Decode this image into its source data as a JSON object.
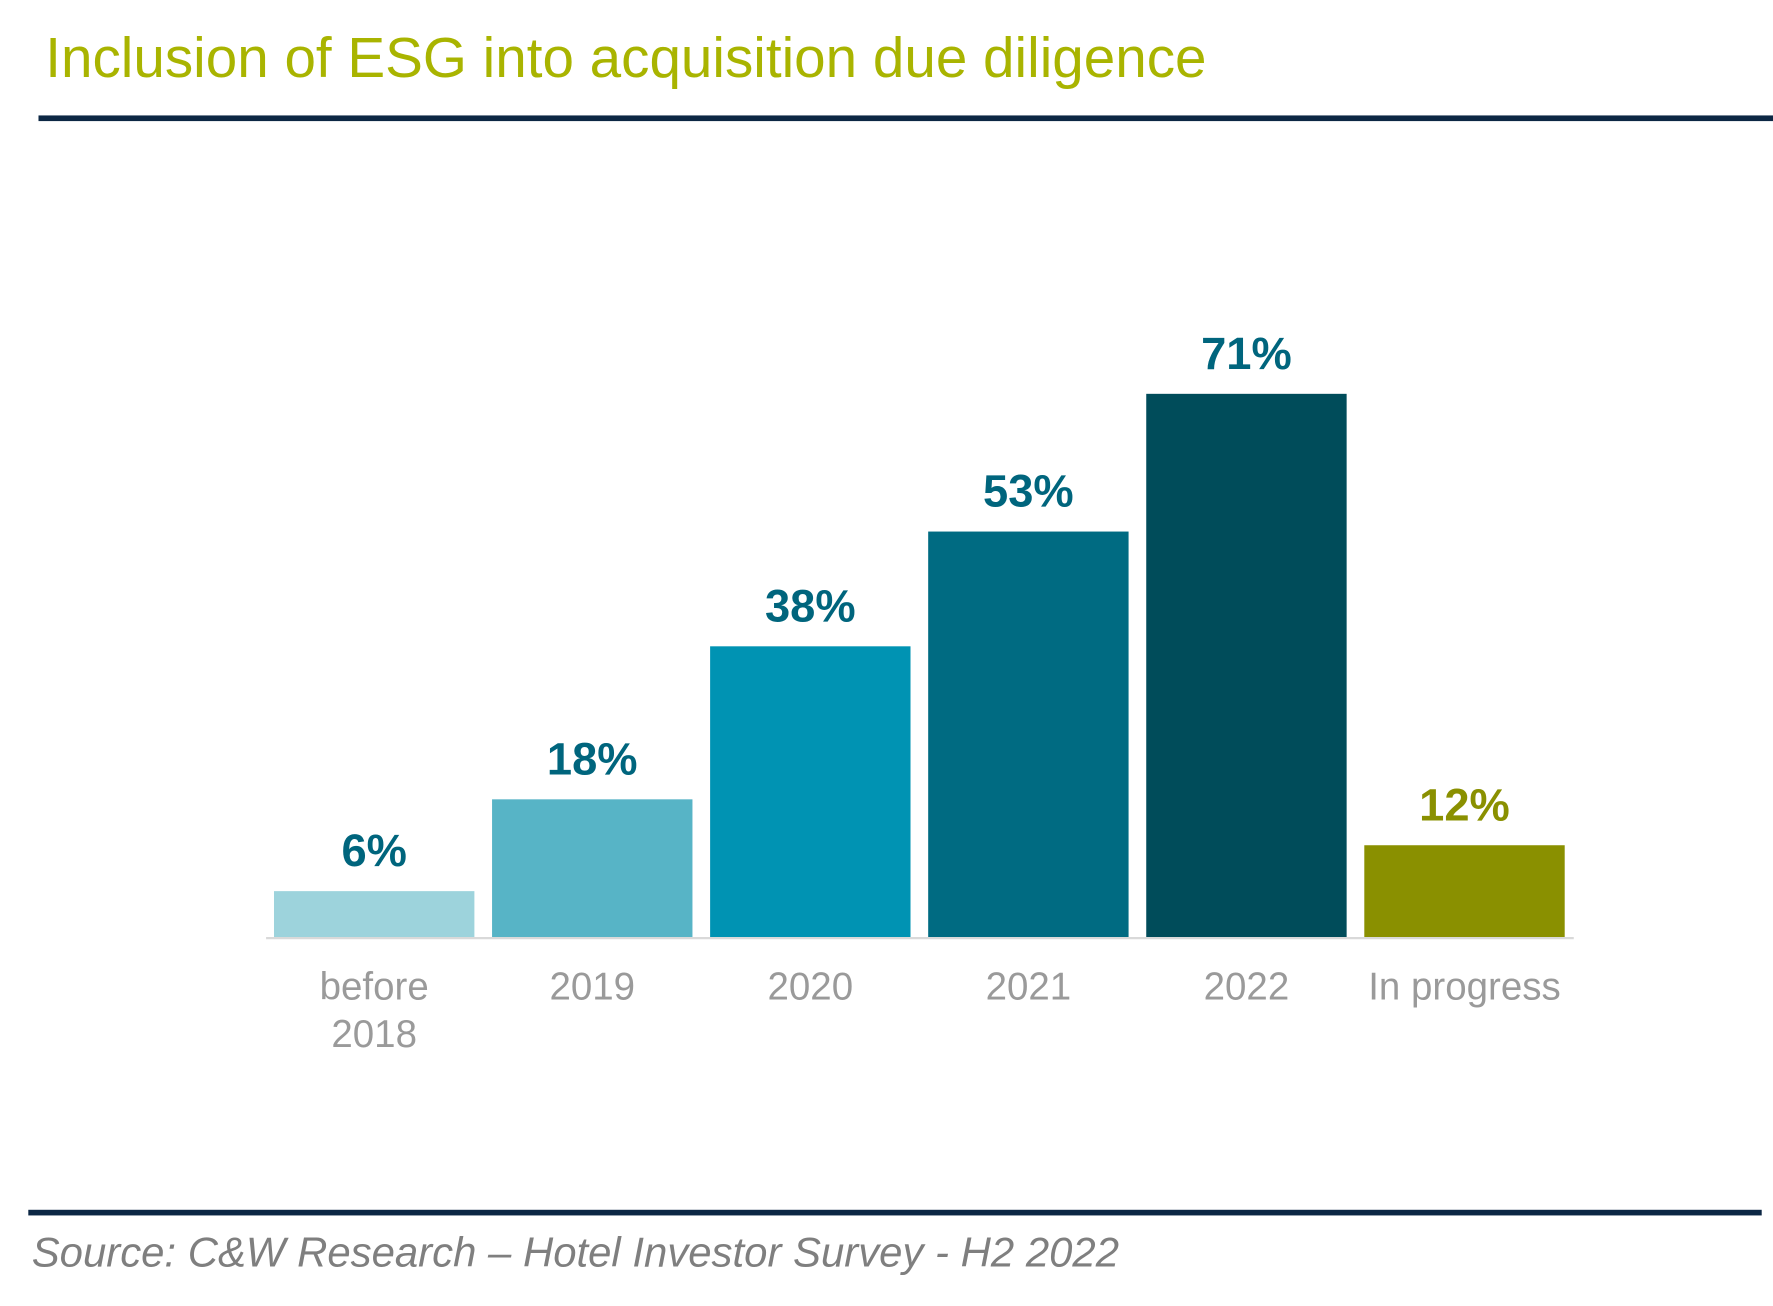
{
  "title": "Inclusion of ESG into acquisition due diligence",
  "source": "Source: C&W Research – Hotel Investor Survey - H2 2022",
  "colors": {
    "title": "#a9b400",
    "rule": "#0c2744",
    "label": "#00657d",
    "highlight_label": "#8a9000"
  },
  "chart_data": {
    "type": "bar",
    "title": "Inclusion of ESG into acquisition due diligence",
    "categories": [
      [
        "before",
        "2018"
      ],
      [
        "2019"
      ],
      [
        "2020"
      ],
      [
        "2021"
      ],
      [
        "2022"
      ],
      [
        "In progress"
      ]
    ],
    "values": [
      6,
      18,
      38,
      53,
      71,
      12
    ],
    "data_labels": [
      "6%",
      "18%",
      "38%",
      "53%",
      "71%",
      "12%"
    ],
    "bar_colors": [
      "#9dd3dc",
      "#57b4c6",
      "#0093b3",
      "#006b82",
      "#004c5a",
      "#8a9000"
    ],
    "label_colors": [
      "#00657d",
      "#00657d",
      "#00657d",
      "#00657d",
      "#00657d",
      "#8a9000"
    ],
    "unit": "%",
    "ylim": [
      0,
      75
    ],
    "grid": false,
    "legend": "none"
  }
}
